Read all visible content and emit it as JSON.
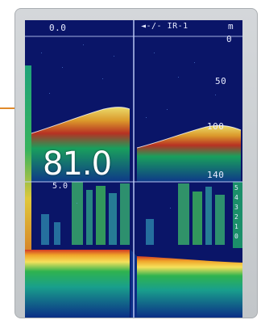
{
  "sounder": {
    "upper_range_start": "0.0",
    "mid_range_start": "5.0",
    "mode_label": "◄-/- IR-1",
    "depth_unit": "m",
    "current_depth": "81.0",
    "depth_scale_labels": [
      "0",
      "50",
      "100",
      "140"
    ],
    "strength_scale_digits": [
      "5",
      "4",
      "3",
      "2",
      "1",
      "0"
    ]
  },
  "colors": {
    "background": "#0a1568",
    "bottom_echo_strong": "#c0331f",
    "bottom_echo_mid": "#f2b32a",
    "bottom_echo_weak": "#1aa65c",
    "fish_echo": "#1e8f7a",
    "bezel": "#c9cdd0",
    "pointer": "#e08a2a"
  },
  "icons": [
    "fish-finder-echogram-icon"
  ]
}
